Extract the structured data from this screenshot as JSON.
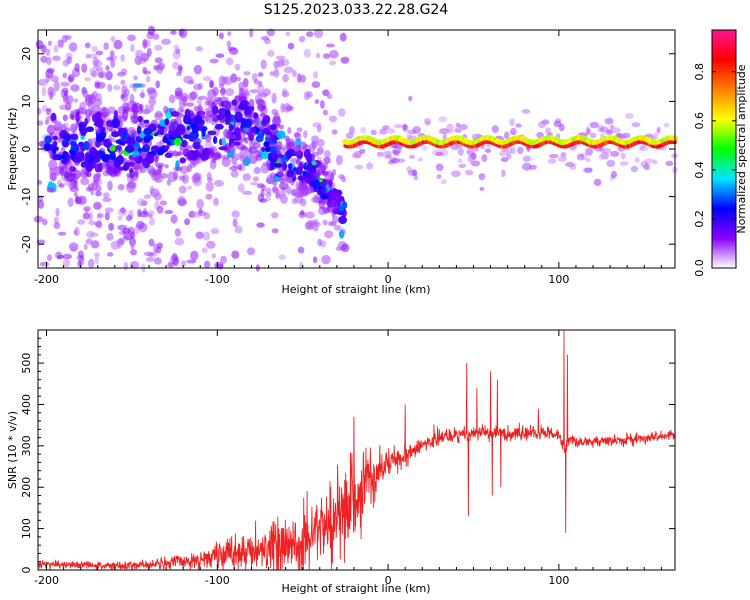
{
  "title": "S125.2023.033.22.28.G24",
  "chart_data": [
    {
      "type": "heatmap",
      "xlabel": "Height of straight line (km)",
      "ylabel": "Frequency (Hz)",
      "xlim": [
        -205,
        168
      ],
      "ylim": [
        -25,
        25
      ],
      "xticks": [
        -200,
        -100,
        0,
        100
      ],
      "yticks": [
        -20,
        -10,
        0,
        10,
        20
      ],
      "colorbar": {
        "label": "Normalized spectral amplitude",
        "range": [
          0.0,
          0.97
        ],
        "ticks": [
          0.0,
          0.2,
          0.4,
          0.6,
          0.8
        ],
        "colors": [
          "#ffffff",
          "#8a00ff",
          "#0000ff",
          "#00e5ff",
          "#00ff00",
          "#ffff00",
          "#ff8000",
          "#ff0000",
          "#ff1493"
        ]
      },
      "features": {
        "diffuse_region": {
          "x": [
            -205,
            -25
          ],
          "freq_range": [
            -25,
            25
          ],
          "typical_amplitude": 0.05
        },
        "descending_trace": [
          {
            "x": -150,
            "freq": 1.0
          },
          {
            "x": -120,
            "freq": 2.5
          },
          {
            "x": -100,
            "freq": 4.0
          },
          {
            "x": -90,
            "freq": 6.0
          },
          {
            "x": -75,
            "freq": 3.0
          },
          {
            "x": -60,
            "freq": -2.0
          },
          {
            "x": -45,
            "freq": -5.0
          },
          {
            "x": -30,
            "freq": -12.0
          }
        ],
        "stable_line": {
          "x": [
            -25,
            168
          ],
          "freq": 1.0,
          "amplitude": 0.9
        }
      }
    },
    {
      "type": "line",
      "xlabel": "Height of straight line (km)",
      "ylabel": "SNR (10 * v/v)",
      "xlim": [
        -205,
        168
      ],
      "ylim": [
        0,
        580
      ],
      "xticks": [
        -200,
        -100,
        0,
        100
      ],
      "yticks": [
        0,
        100,
        200,
        300,
        400,
        500
      ],
      "color": "#ee2222",
      "series": [
        {
          "x": [
            -205,
            -190,
            -180,
            -160,
            -140,
            -120,
            -100,
            -90,
            -80,
            -70,
            -60,
            -50,
            -40,
            -30,
            -20,
            -10,
            0,
            10,
            20,
            30,
            40,
            50,
            60,
            70,
            80,
            90,
            100,
            103,
            106,
            110,
            120,
            140,
            168
          ],
          "mean": [
            15,
            12,
            12,
            10,
            12,
            20,
            35,
            40,
            45,
            55,
            65,
            75,
            95,
            120,
            170,
            220,
            260,
            280,
            300,
            320,
            325,
            330,
            330,
            330,
            330,
            330,
            330,
            290,
            320,
            310,
            310,
            315,
            325
          ],
          "noise": [
            8,
            8,
            8,
            8,
            10,
            15,
            25,
            35,
            40,
            45,
            60,
            70,
            80,
            90,
            90,
            60,
            35,
            25,
            20,
            18,
            15,
            15,
            15,
            15,
            15,
            15,
            15,
            15,
            10,
            10,
            10,
            10,
            10
          ]
        }
      ],
      "spikes": [
        {
          "x": -20,
          "value": 370
        },
        {
          "x": 10,
          "value": 400
        },
        {
          "x": 46,
          "value": 500
        },
        {
          "x": 47,
          "value": 130
        },
        {
          "x": 52,
          "value": 440
        },
        {
          "x": 60,
          "value": 480
        },
        {
          "x": 61,
          "value": 180
        },
        {
          "x": 64,
          "value": 460
        },
        {
          "x": 66,
          "value": 200
        },
        {
          "x": 88,
          "value": 390
        },
        {
          "x": 103,
          "value": 580
        },
        {
          "x": 104,
          "value": 90
        },
        {
          "x": 105,
          "value": 520
        }
      ]
    }
  ]
}
